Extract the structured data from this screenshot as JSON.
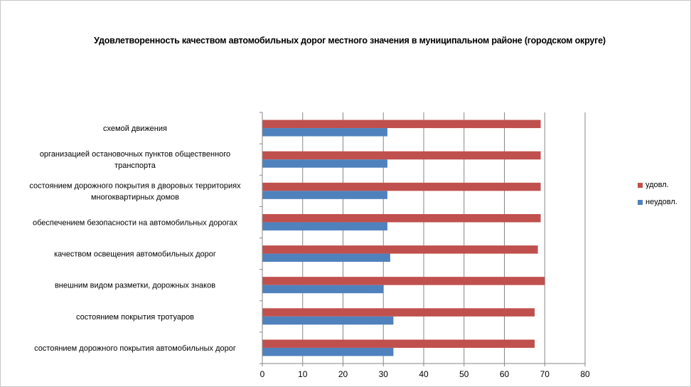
{
  "chart_data": {
    "type": "bar",
    "orientation": "horizontal",
    "title": "Удовлетворенность качеством автомобильных дорог местного значения в муниципальном районе (городском округе)",
    "categories": [
      "схемой движения",
      "организацией остановочных пунктов общественного транспорта",
      "состоянием дорожного покрытия в дворовых территориях многоквартирных домов",
      "обеспечением безопасности на автомобильных дорогах",
      "качеством освещения автомобильных дорог",
      "внешним видом разметки, дорожных знаков",
      "состоянием покрытия тротуаров",
      "состоянием дорожного покрытия автомобильных дорог"
    ],
    "category_lines": [
      [
        "схемой движения"
      ],
      [
        "организацией остановочных пунктов общественного",
        "транспорта"
      ],
      [
        "состоянием дорожного покрытия в дворовых территориях",
        "многоквартирных домов"
      ],
      [
        "обеспечением  безопасности на автомобильных дорогах"
      ],
      [
        "качеством освещения  автомобильных дорог"
      ],
      [
        "внешним  видом разметки, дорожных знаков"
      ],
      [
        "состоянием покрытия тротуаров"
      ],
      [
        "состоянием дорожного покрытия автомобильных дорог"
      ]
    ],
    "series": [
      {
        "name": "удовл.",
        "color": "#c0504d",
        "values": [
          69,
          69,
          69,
          69,
          68.3,
          70,
          67.5,
          67.5
        ]
      },
      {
        "name": "неудовл.",
        "color": "#4f81bd",
        "values": [
          31,
          31,
          31,
          31,
          31.7,
          30,
          32.5,
          32.5
        ]
      }
    ],
    "xlim": [
      0,
      80
    ],
    "xticks": [
      0,
      10,
      20,
      30,
      40,
      50,
      60,
      70,
      80
    ],
    "grid": true,
    "legend": "right",
    "xlabel": "",
    "ylabel": ""
  }
}
